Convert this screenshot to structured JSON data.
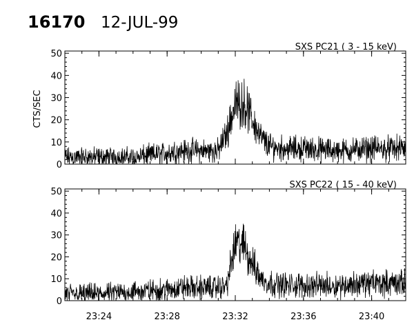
{
  "header": {
    "event_id": "16170",
    "date": "12-JUL-99"
  },
  "chart_data": [
    {
      "type": "line",
      "title": "SXS PC21  (  3 - 15 keV)",
      "xlabel": "",
      "ylabel": "CTS/SEC",
      "ylim": [
        0,
        51
      ],
      "yticks": [
        0,
        10,
        20,
        30,
        40,
        50
      ],
      "x_unit": "minutes",
      "xlim": [
        "23:22",
        "23:42"
      ],
      "xticks": [
        "23:24",
        "23:28",
        "23:32",
        "23:36",
        "23:40"
      ],
      "show_x_tick_labels": false,
      "profile_minutes": [
        "23:22",
        "23:24",
        "23:26",
        "23:28",
        "23:28:30",
        "23:29",
        "23:29:30",
        "23:30",
        "23:31",
        "23:31:30",
        "23:32",
        "23:32:30",
        "23:33",
        "23:33:30",
        "23:34",
        "23:35",
        "23:36",
        "23:38",
        "23:40",
        "23:42"
      ],
      "profile_values": [
        3,
        3,
        3,
        5,
        6,
        6,
        6,
        6,
        6,
        14,
        27,
        28,
        20,
        12,
        8,
        7,
        7,
        6,
        7,
        7
      ],
      "noise_amplitude": 3.5
    },
    {
      "type": "line",
      "title": "SXS PC22  ( 15 - 40 keV)",
      "xlabel": "",
      "ylabel": "",
      "ylim": [
        0,
        51
      ],
      "yticks": [
        0,
        10,
        20,
        30,
        40,
        50
      ],
      "x_unit": "minutes",
      "xlim": [
        "23:22",
        "23:42"
      ],
      "xticks": [
        "23:24",
        "23:28",
        "23:32",
        "23:36",
        "23:40"
      ],
      "show_x_tick_labels": true,
      "profile_minutes": [
        "23:22",
        "23:24",
        "23:26",
        "23:28",
        "23:29",
        "23:30",
        "23:31",
        "23:31:30",
        "23:32",
        "23:32:30",
        "23:33",
        "23:33:30",
        "23:34",
        "23:35",
        "23:36",
        "23:38",
        "23:40",
        "23:42"
      ],
      "profile_values": [
        3,
        3,
        4,
        5,
        6,
        6,
        6,
        7,
        26,
        25,
        17,
        10,
        8,
        7,
        7,
        7,
        8,
        8
      ],
      "noise_amplitude": 3.5
    }
  ]
}
